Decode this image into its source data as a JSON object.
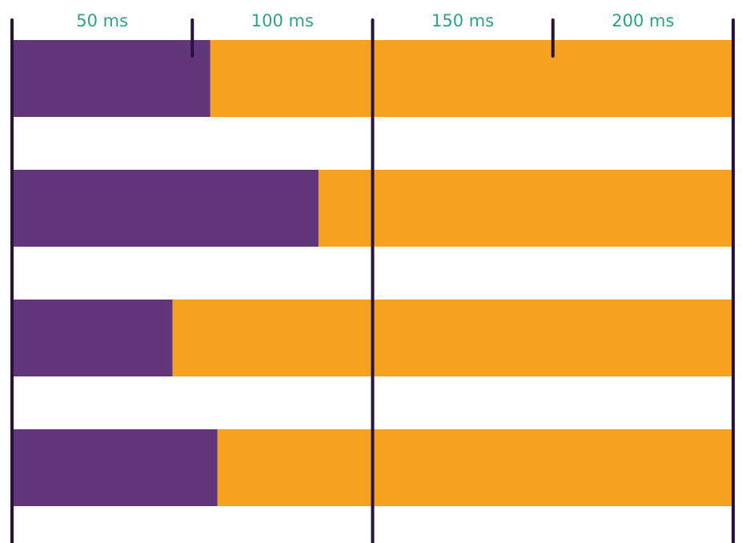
{
  "chart_data": {
    "type": "bar",
    "orientation": "horizontal",
    "stacked": true,
    "title": "",
    "xlabel": "",
    "ylabel": "",
    "xlim": [
      0,
      200
    ],
    "x_unit": "ms",
    "tick_labels": [
      {
        "value": 25,
        "label": "50 ms"
      },
      {
        "value": 75,
        "label": "100 ms"
      },
      {
        "value": 125,
        "label": "150 ms"
      },
      {
        "value": 175,
        "label": "200 ms"
      }
    ],
    "major_ticks": [
      0,
      100,
      200
    ],
    "minor_ticks": [
      50,
      150
    ],
    "categories": [
      "",
      "",
      "",
      ""
    ],
    "series": [
      {
        "values": [
          55,
          85,
          44.5,
          57
        ],
        "color": "#62367a"
      },
      {
        "values": [
          145,
          115,
          155.5,
          143
        ],
        "color": "#f5a31e"
      }
    ],
    "grid": true,
    "legend": "none",
    "colors": {
      "tick_label": "#2aa38a",
      "grid_line": "#2b1340",
      "background": "#ffffff"
    }
  }
}
